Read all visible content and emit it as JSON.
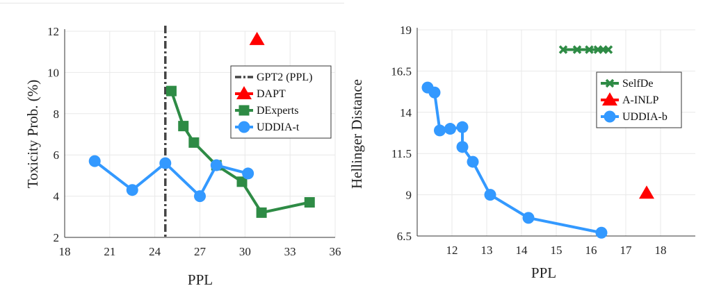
{
  "chart_data": [
    {
      "type": "line",
      "xlabel": "PPL",
      "ylabel": "Toxicity Prob. (%)",
      "xlim": [
        18,
        36
      ],
      "ylim": [
        2,
        12
      ],
      "xticks": [
        18,
        21,
        24,
        27,
        30,
        33,
        36
      ],
      "yticks": [
        2,
        4,
        6,
        8,
        10,
        12
      ],
      "grid": true,
      "legend_position": "right",
      "vline": {
        "name": "GPT2 (PPL)",
        "x": 24.7,
        "color": "#444444"
      },
      "series": [
        {
          "name": "DAPT",
          "marker": "triangle",
          "color": "#ff0000",
          "x": [
            30.8
          ],
          "y": [
            11.6
          ]
        },
        {
          "name": "DExperts",
          "marker": "square",
          "color": "#2e8b45",
          "x": [
            25.1,
            25.9,
            26.6,
            28.1,
            29.8,
            31.1,
            34.3
          ],
          "y": [
            9.1,
            7.4,
            6.6,
            5.5,
            4.7,
            3.2,
            3.7
          ]
        },
        {
          "name": "UDDIA-t",
          "marker": "circle",
          "color": "#3399ff",
          "x": [
            20.0,
            22.5,
            24.7,
            27.0,
            28.1,
            30.2
          ],
          "y": [
            5.7,
            4.3,
            5.6,
            4.0,
            5.5,
            5.1
          ]
        }
      ]
    },
    {
      "type": "line",
      "xlabel": "PPL",
      "ylabel": "Hellinger Distance",
      "xlim": [
        11,
        19
      ],
      "ylim": [
        6.5,
        19
      ],
      "xticks": [
        12,
        13,
        14,
        15,
        16,
        17,
        18
      ],
      "yticks": [
        6.5,
        9,
        11.5,
        14,
        16.5,
        19
      ],
      "grid": true,
      "legend_position": "top-right",
      "series": [
        {
          "name": "SelfDe",
          "marker": "x",
          "color": "#2e8b45",
          "x": [
            15.2,
            15.6,
            15.95,
            16.2,
            16.35,
            16.5
          ],
          "y": [
            17.8,
            17.8,
            17.8,
            17.8,
            17.8,
            17.8
          ]
        },
        {
          "name": "A-INLP",
          "marker": "triangle",
          "color": "#ff0000",
          "x": [
            17.6
          ],
          "y": [
            9.1
          ]
        },
        {
          "name": "UDDIA-b",
          "marker": "circle",
          "color": "#3399ff",
          "x": [
            11.3,
            11.5,
            11.65,
            11.95,
            12.3,
            12.3,
            12.6,
            13.1,
            14.2,
            16.3
          ],
          "y": [
            15.5,
            15.2,
            12.9,
            13.0,
            13.1,
            11.9,
            11.0,
            9.0,
            7.6,
            6.7
          ]
        }
      ]
    }
  ]
}
